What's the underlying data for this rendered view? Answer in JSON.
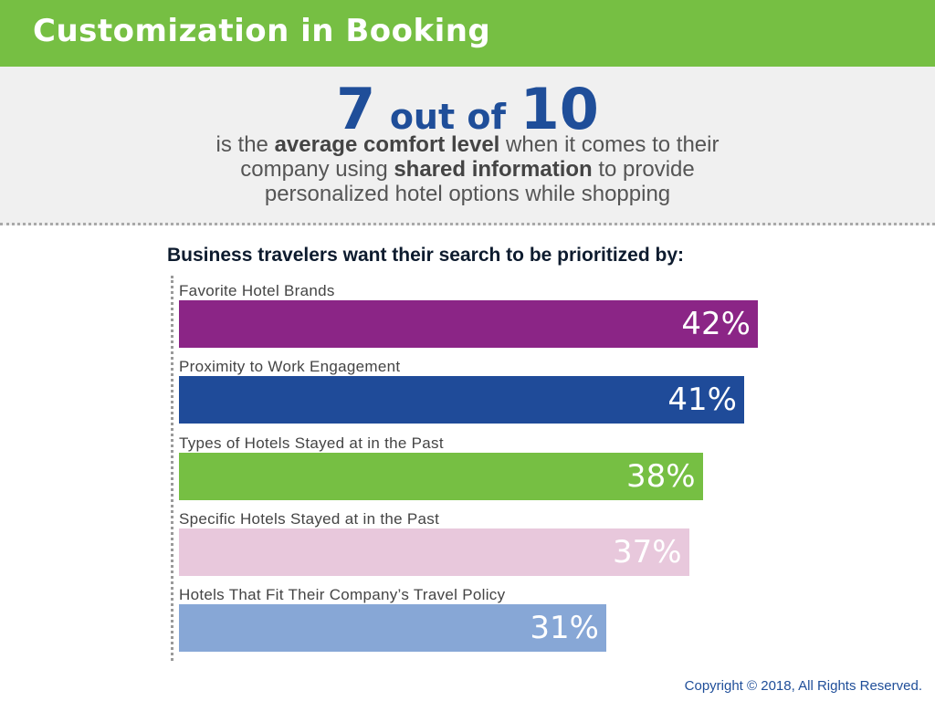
{
  "header": {
    "title": "Customization in Booking"
  },
  "hero": {
    "stat_num": "7",
    "stat_mid": "out of",
    "stat_den": "10",
    "line1_a": "is the ",
    "line1_b": "average comfort level",
    "line1_c": " when it comes to their",
    "line2_a": "company using ",
    "line2_b": "shared information",
    "line2_c": " to provide",
    "line3": "personalized hotel options while shopping"
  },
  "chart_data": {
    "type": "bar",
    "orientation": "horizontal",
    "title": "Business travelers want their search to be prioritized by:",
    "categories": [
      "Favorite Hotel Brands",
      "Proximity to Work Engagement",
      "Types of Hotels Stayed at in the Past",
      "Specific Hotels Stayed at in the Past",
      "Hotels That Fit Their Company’s Travel Policy"
    ],
    "values": [
      42,
      41,
      38,
      37,
      31
    ],
    "value_labels": [
      "42%",
      "41%",
      "38%",
      "37%",
      "31%"
    ],
    "colors": [
      "#8b2586",
      "#1f4b99",
      "#76bf43",
      "#e8c8dc",
      "#87a7d6"
    ],
    "unit": "%"
  },
  "footer": {
    "copyright": "Copyright © 2018, All Rights Reserved."
  }
}
